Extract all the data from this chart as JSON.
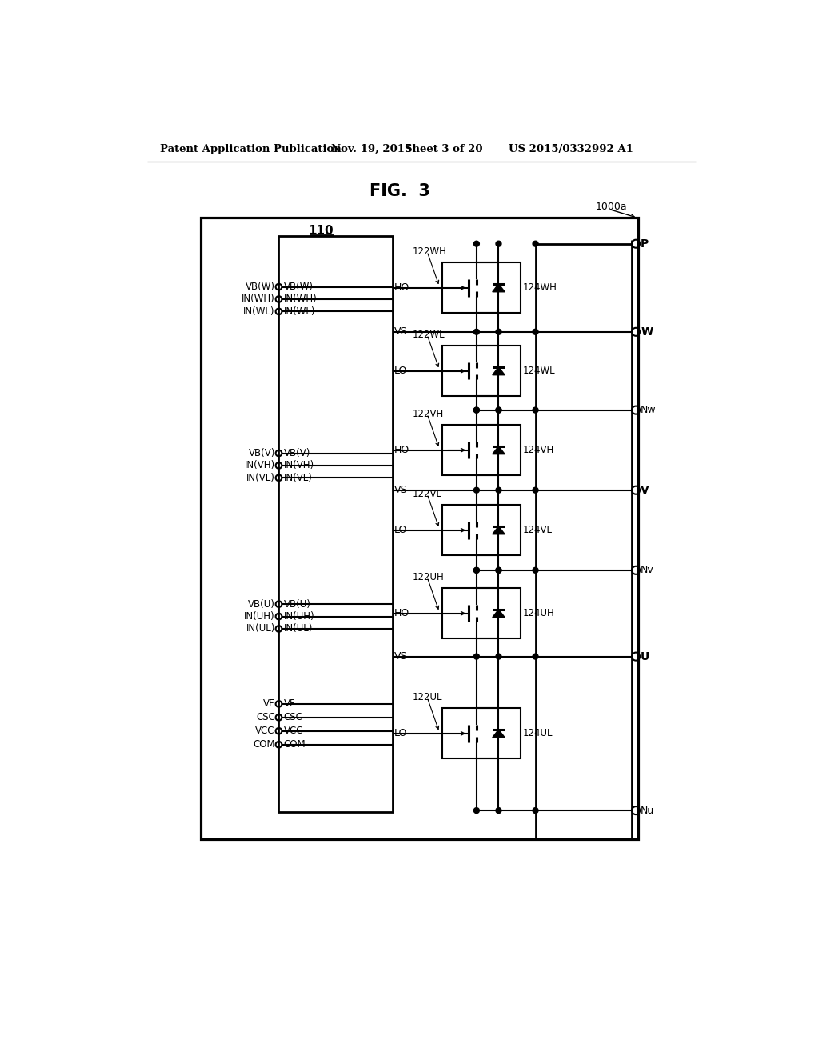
{
  "bg_color": "#ffffff",
  "header_left": "Patent Application Publication",
  "header_date": "Nov. 19, 2015",
  "header_sheet": "Sheet 3 of 20",
  "header_num": "US 2015/0332992 A1",
  "fig_title": "FIG.  3",
  "outer_label": "1000a",
  "ic_label": "110",
  "phases": [
    {
      "name": "W",
      "high": {
        "sw": "122WH",
        "diode": "124WH"
      },
      "low": {
        "sw": "122WL",
        "diode": "124WL"
      },
      "ext_pins": [
        "VB(W)",
        "IN(WH)",
        "IN(WL)"
      ],
      "ic_pins": [
        "VB(W)",
        "IN(WH)",
        "IN(WL)"
      ]
    },
    {
      "name": "V",
      "high": {
        "sw": "122VH",
        "diode": "124VH"
      },
      "low": {
        "sw": "122VL",
        "diode": "124VL"
      },
      "ext_pins": [
        "VB(V)",
        "IN(VH)",
        "IN(VL)"
      ],
      "ic_pins": [
        "VB(V)",
        "IN(VH)",
        "IN(VL)"
      ]
    },
    {
      "name": "U",
      "high": {
        "sw": "122UH",
        "diode": "124UH"
      },
      "low": {
        "sw": "122UL",
        "diode": "124UL"
      },
      "ext_pins": [
        "VB(U)",
        "IN(UH)",
        "IN(UL)"
      ],
      "ic_pins": [
        "VB(U)",
        "IN(UH)",
        "IN(UL)"
      ]
    }
  ],
  "misc_ext": [
    "VF",
    "CSC",
    "VCC",
    "COM"
  ],
  "misc_ic": [
    "VF",
    "CSC",
    "VCC",
    "COM"
  ],
  "P_label": "P",
  "W_label": "W",
  "V_label": "V",
  "U_label": "U",
  "Nw_label": "Nw",
  "Nv_label": "Nv",
  "Nu_label": "Nu"
}
